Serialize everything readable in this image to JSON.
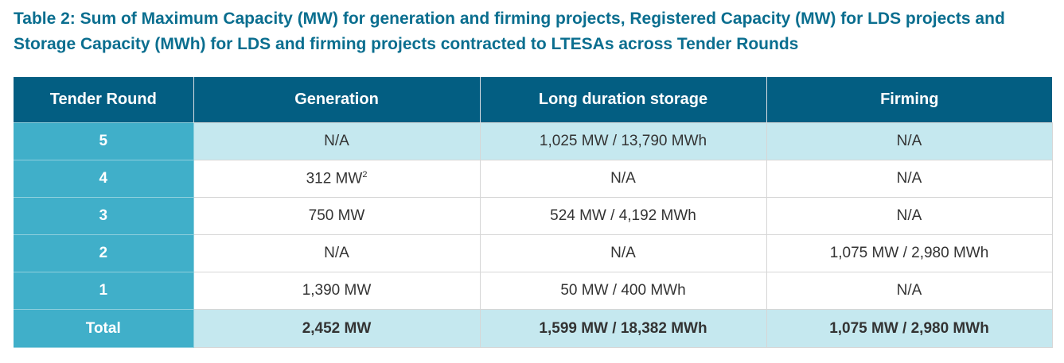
{
  "title": "Table 2: Sum of Maximum Capacity (MW) for generation and firming projects, Registered Capacity (MW) for LDS projects and Storage Capacity (MWh) for LDS and firming projects contracted to LTESAs across Tender Rounds",
  "headers": [
    "Tender Round",
    "Generation",
    "Long duration storage",
    "Firming"
  ],
  "rows": [
    {
      "round": "5",
      "generation": "N/A",
      "gen_note": "",
      "lds": "1,025 MW / 13,790 MWh",
      "firming": "N/A"
    },
    {
      "round": "4",
      "generation": "312 MW",
      "gen_note": "2",
      "lds": "N/A",
      "firming": "N/A"
    },
    {
      "round": "3",
      "generation": "750 MW",
      "gen_note": "",
      "lds": "524 MW / 4,192 MWh",
      "firming": "N/A"
    },
    {
      "round": "2",
      "generation": "N/A",
      "gen_note": "",
      "lds": "N/A",
      "firming": "1,075 MW / 2,980 MWh"
    },
    {
      "round": "1",
      "generation": "1,390 MW",
      "gen_note": "",
      "lds": "50 MW / 400 MWh",
      "firming": "N/A"
    }
  ],
  "total": {
    "label": "Total",
    "generation": "2,452 MW",
    "lds": "1,599 MW / 18,382 MWh",
    "firming": "1,075 MW / 2,980 MWh"
  }
}
